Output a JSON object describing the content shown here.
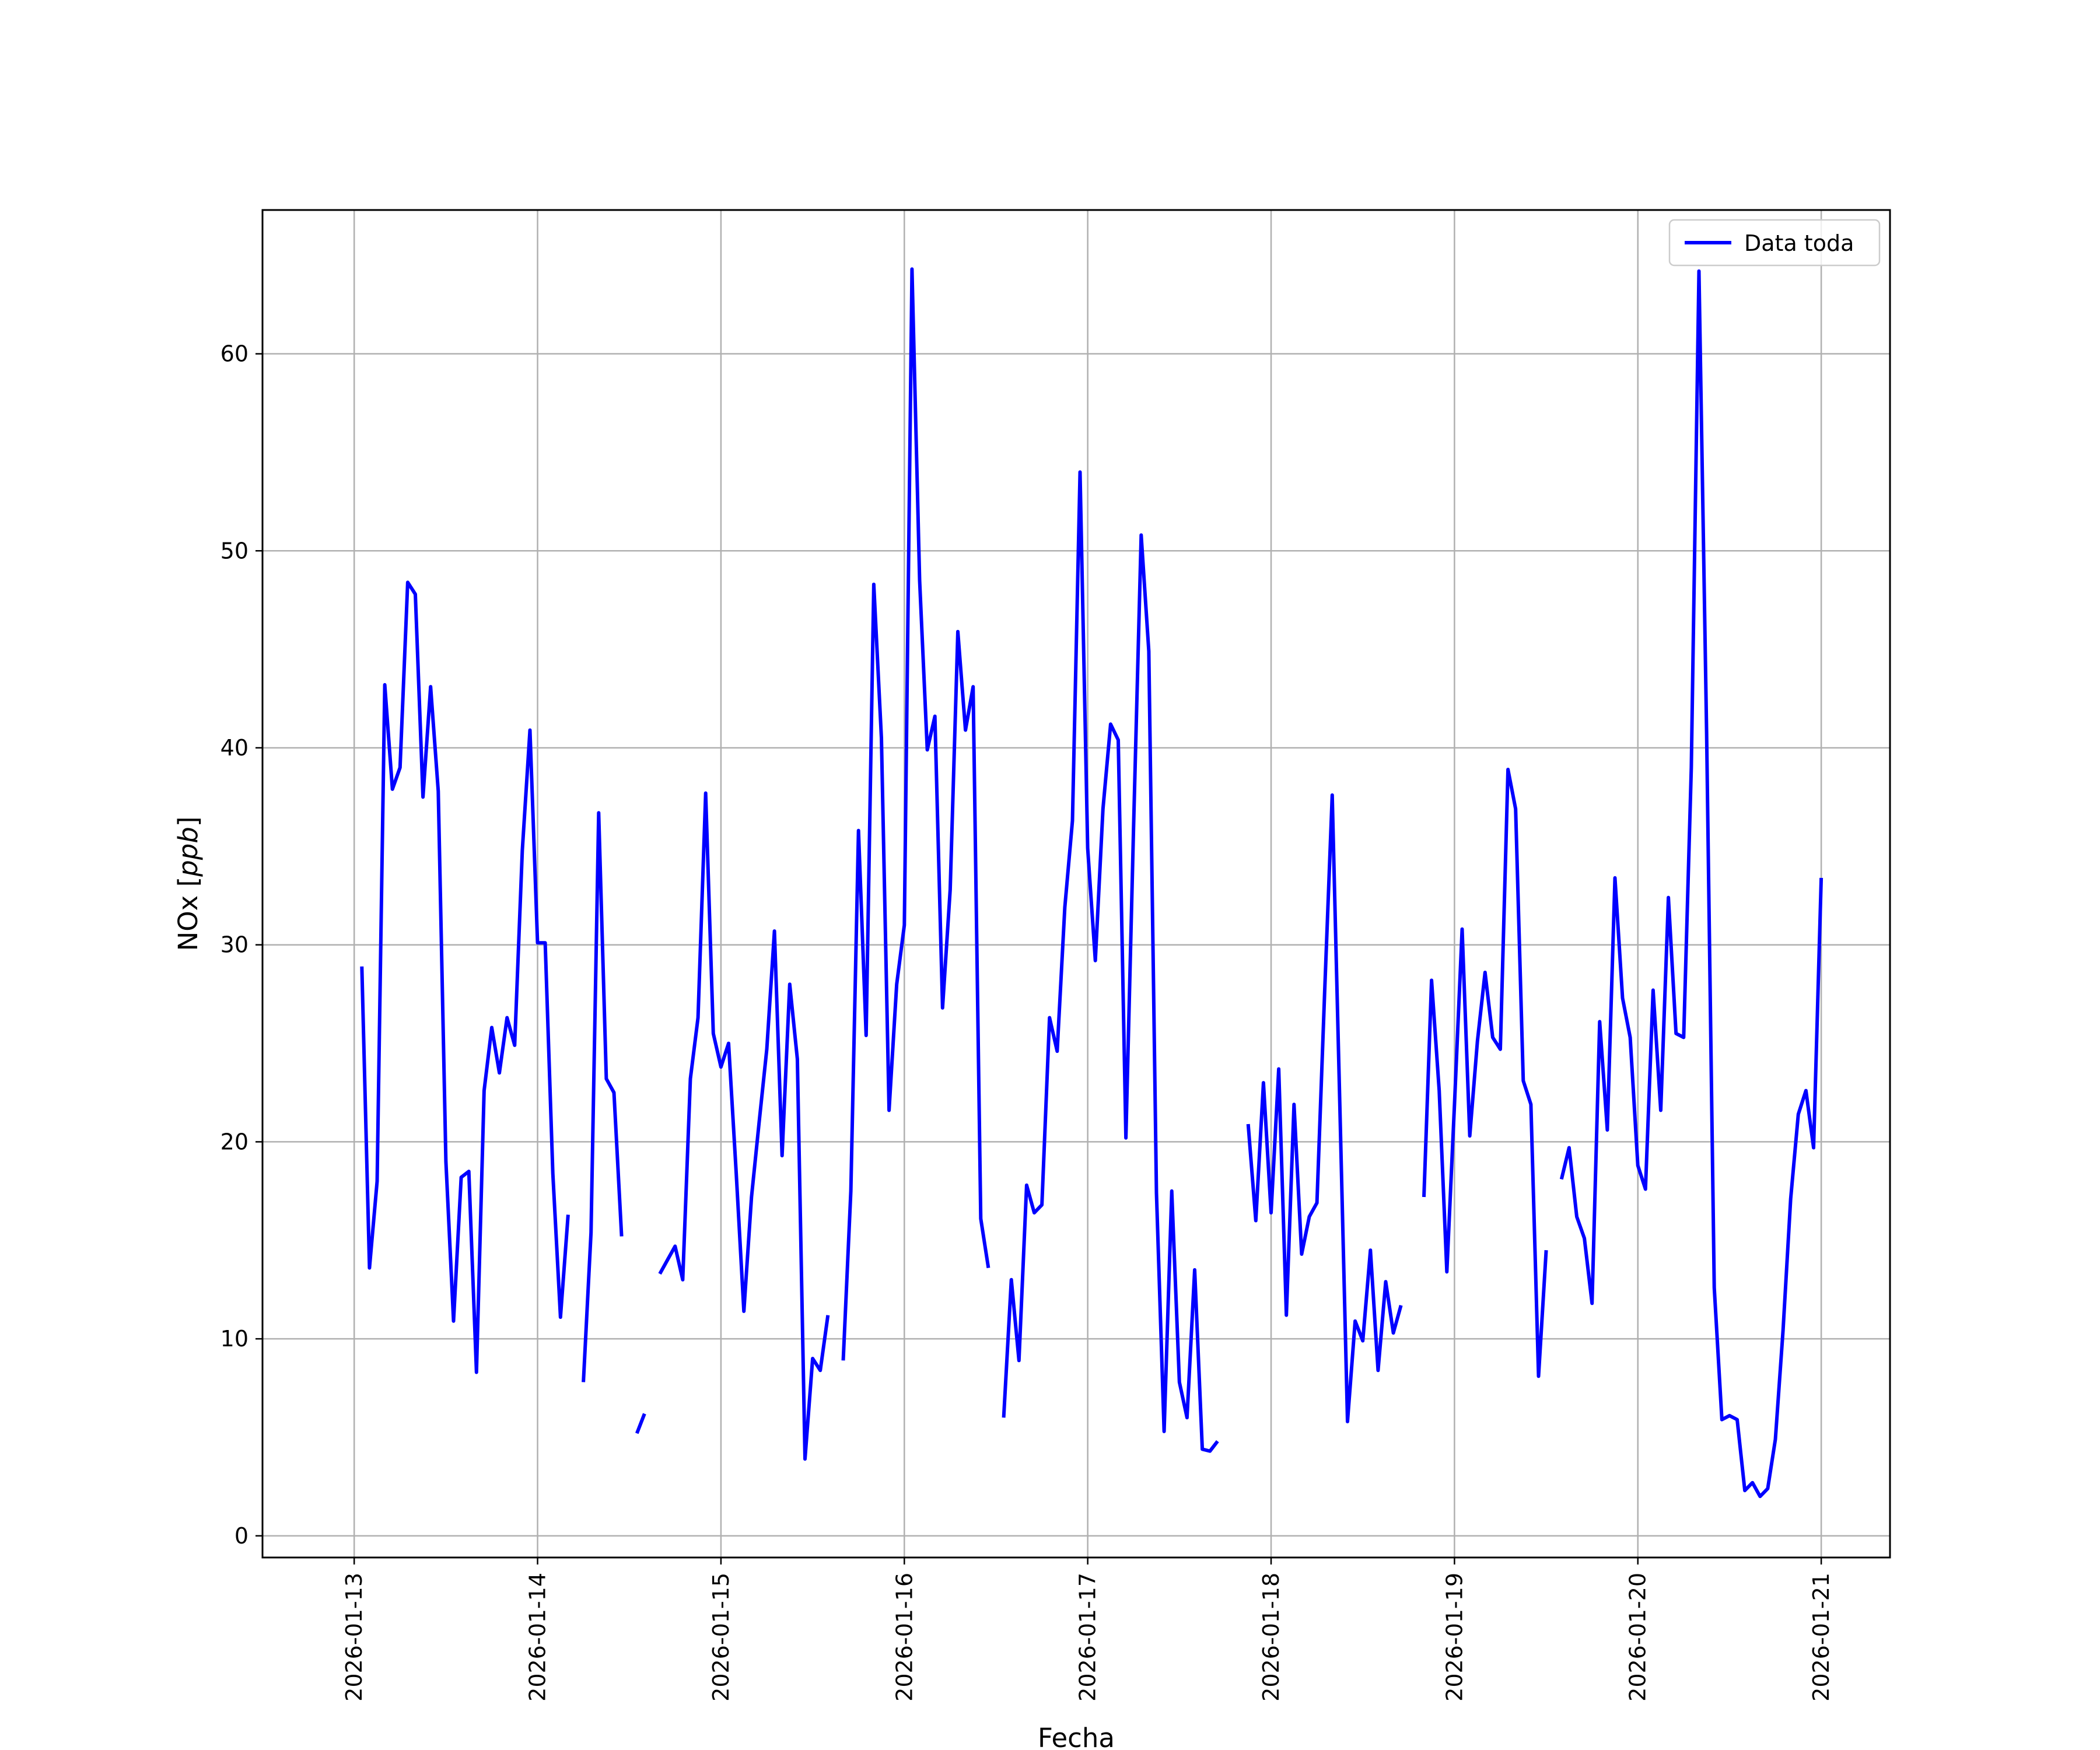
{
  "chart_data": {
    "type": "line",
    "title": "",
    "xlabel": "Fecha",
    "ylabel_prefix": "NOx [",
    "ylabel_unit": "ppb",
    "ylabel_suffix": "]",
    "xlim": [
      "2026-01-12 12:00",
      "2026-01-21 09:00"
    ],
    "ylim": [
      -1.1,
      67.3
    ],
    "grid": true,
    "legend_position": "top-right",
    "y_ticks": [
      0,
      10,
      20,
      30,
      40,
      50,
      60
    ],
    "x_ticks": [
      "2026-01-13",
      "2026-01-14",
      "2026-01-15",
      "2026-01-16",
      "2026-01-17",
      "2026-01-18",
      "2026-01-19",
      "2026-01-20",
      "2026-01-21"
    ],
    "colors": {
      "series": "#0000ff",
      "grid": "#b0b0b0",
      "axes": "#000000"
    },
    "series": [
      {
        "name": "Data toda",
        "segments": [
          [
            [
              "2026-01-13 01:00",
              28.9
            ],
            [
              "2026-01-13 02:00",
              13.6
            ],
            [
              "2026-01-13 03:00",
              18.0
            ],
            [
              "2026-01-13 04:00",
              43.2
            ],
            [
              "2026-01-13 05:00",
              37.9
            ],
            [
              "2026-01-13 06:00",
              39.0
            ],
            [
              "2026-01-13 07:00",
              48.4
            ],
            [
              "2026-01-13 08:00",
              47.8
            ],
            [
              "2026-01-13 09:00",
              37.5
            ],
            [
              "2026-01-13 10:00",
              43.1
            ],
            [
              "2026-01-13 11:00",
              37.8
            ],
            [
              "2026-01-13 12:00",
              19.0
            ],
            [
              "2026-01-13 13:00",
              10.9
            ],
            [
              "2026-01-13 14:00",
              18.2
            ],
            [
              "2026-01-13 15:00",
              18.5
            ],
            [
              "2026-01-13 16:00",
              8.3
            ],
            [
              "2026-01-13 17:00",
              22.6
            ],
            [
              "2026-01-13 18:00",
              25.8
            ],
            [
              "2026-01-13 19:00",
              23.5
            ],
            [
              "2026-01-13 20:00",
              26.3
            ],
            [
              "2026-01-13 21:00",
              24.9
            ],
            [
              "2026-01-13 22:00",
              34.8
            ],
            [
              "2026-01-13 23:00",
              40.9
            ],
            [
              "2026-01-14 00:00",
              30.1
            ],
            [
              "2026-01-14 01:00",
              30.1
            ],
            [
              "2026-01-14 02:00",
              18.4
            ],
            [
              "2026-01-14 03:00",
              11.1
            ],
            [
              "2026-01-14 04:00",
              16.3
            ]
          ],
          [
            [
              "2026-01-14 06:00",
              7.8
            ],
            [
              "2026-01-14 07:00",
              15.4
            ],
            [
              "2026-01-14 08:00",
              36.7
            ],
            [
              "2026-01-14 09:00",
              23.2
            ],
            [
              "2026-01-14 10:00",
              22.5
            ],
            [
              "2026-01-14 11:00",
              15.2
            ]
          ],
          [
            [
              "2026-01-14 13:00",
              5.2
            ],
            [
              "2026-01-14 14:00",
              6.2
            ]
          ],
          [
            [
              "2026-01-14 16:00",
              13.3
            ],
            [
              "2026-01-14 17:00",
              14.0
            ],
            [
              "2026-01-14 18:00",
              14.7
            ],
            [
              "2026-01-14 19:00",
              13.0
            ],
            [
              "2026-01-14 20:00",
              23.2
            ],
            [
              "2026-01-14 21:00",
              26.3
            ],
            [
              "2026-01-14 22:00",
              37.7
            ],
            [
              "2026-01-14 23:00",
              25.5
            ],
            [
              "2026-01-15 00:00",
              23.8
            ],
            [
              "2026-01-15 01:00",
              25.0
            ],
            [
              "2026-01-15 02:00",
              18.4
            ],
            [
              "2026-01-15 03:00",
              11.4
            ],
            [
              "2026-01-15 04:00",
              17.2
            ],
            [
              "2026-01-15 05:00",
              21.0
            ],
            [
              "2026-01-15 06:00",
              24.7
            ],
            [
              "2026-01-15 07:00",
              30.7
            ],
            [
              "2026-01-15 08:00",
              19.3
            ],
            [
              "2026-01-15 09:00",
              28.0
            ],
            [
              "2026-01-15 10:00",
              24.2
            ],
            [
              "2026-01-15 11:00",
              3.9
            ],
            [
              "2026-01-15 12:00",
              9.0
            ],
            [
              "2026-01-15 13:00",
              8.4
            ],
            [
              "2026-01-15 14:00",
              11.2
            ]
          ],
          [
            [
              "2026-01-15 16:00",
              8.9
            ],
            [
              "2026-01-15 17:00",
              17.5
            ],
            [
              "2026-01-15 18:00",
              35.8
            ],
            [
              "2026-01-15 19:00",
              25.4
            ],
            [
              "2026-01-15 20:00",
              48.3
            ],
            [
              "2026-01-15 21:00",
              40.5
            ],
            [
              "2026-01-15 22:00",
              21.6
            ],
            [
              "2026-01-15 23:00",
              28.0
            ],
            [
              "2026-01-16 00:00",
              31.0
            ],
            [
              "2026-01-16 01:00",
              64.3
            ],
            [
              "2026-01-16 02:00",
              48.5
            ],
            [
              "2026-01-16 03:00",
              39.9
            ],
            [
              "2026-01-16 04:00",
              41.6
            ],
            [
              "2026-01-16 05:00",
              26.8
            ],
            [
              "2026-01-16 06:00",
              32.8
            ],
            [
              "2026-01-16 07:00",
              45.9
            ],
            [
              "2026-01-16 08:00",
              40.9
            ],
            [
              "2026-01-16 09:00",
              43.1
            ],
            [
              "2026-01-16 10:00",
              16.1
            ],
            [
              "2026-01-16 11:00",
              13.6
            ]
          ],
          [
            [
              "2026-01-16 13:00",
              6.0
            ],
            [
              "2026-01-16 14:00",
              13.0
            ],
            [
              "2026-01-16 15:00",
              8.9
            ],
            [
              "2026-01-16 16:00",
              17.8
            ],
            [
              "2026-01-16 17:00",
              16.4
            ],
            [
              "2026-01-16 18:00",
              16.8
            ],
            [
              "2026-01-16 19:00",
              26.3
            ],
            [
              "2026-01-16 20:00",
              24.6
            ],
            [
              "2026-01-16 21:00",
              31.9
            ],
            [
              "2026-01-16 22:00",
              36.3
            ],
            [
              "2026-01-16 23:00",
              54.0
            ],
            [
              "2026-01-17 00:00",
              34.9
            ],
            [
              "2026-01-17 01:00",
              29.2
            ],
            [
              "2026-01-17 02:00",
              36.9
            ],
            [
              "2026-01-17 03:00",
              41.2
            ],
            [
              "2026-01-17 04:00",
              40.4
            ],
            [
              "2026-01-17 05:00",
              20.2
            ],
            [
              "2026-01-17 06:00",
              35.9
            ],
            [
              "2026-01-17 07:00",
              50.8
            ],
            [
              "2026-01-17 08:00",
              44.9
            ],
            [
              "2026-01-17 09:00",
              17.4
            ],
            [
              "2026-01-17 10:00",
              5.3
            ],
            [
              "2026-01-17 11:00",
              17.5
            ],
            [
              "2026-01-17 12:00",
              7.8
            ],
            [
              "2026-01-17 13:00",
              6.0
            ],
            [
              "2026-01-17 14:00",
              13.5
            ],
            [
              "2026-01-17 15:00",
              4.4
            ],
            [
              "2026-01-17 16:00",
              4.3
            ],
            [
              "2026-01-17 17:00",
              4.8
            ]
          ],
          [
            [
              "2026-01-17 21:00",
              20.9
            ],
            [
              "2026-01-17 22:00",
              16.0
            ],
            [
              "2026-01-17 23:00",
              23.0
            ],
            [
              "2026-01-18 00:00",
              16.4
            ],
            [
              "2026-01-18 01:00",
              23.7
            ],
            [
              "2026-01-18 02:00",
              11.2
            ],
            [
              "2026-01-18 03:00",
              21.9
            ],
            [
              "2026-01-18 04:00",
              14.3
            ],
            [
              "2026-01-18 05:00",
              16.2
            ],
            [
              "2026-01-18 06:00",
              16.9
            ],
            [
              "2026-01-18 07:00",
              27.5
            ],
            [
              "2026-01-18 08:00",
              37.6
            ],
            [
              "2026-01-18 09:00",
              21.8
            ],
            [
              "2026-01-18 10:00",
              5.8
            ],
            [
              "2026-01-18 11:00",
              10.9
            ],
            [
              "2026-01-18 12:00",
              9.9
            ],
            [
              "2026-01-18 13:00",
              14.5
            ],
            [
              "2026-01-18 14:00",
              8.4
            ],
            [
              "2026-01-18 15:00",
              12.9
            ],
            [
              "2026-01-18 16:00",
              10.3
            ],
            [
              "2026-01-18 17:00",
              11.7
            ]
          ],
          [
            [
              "2026-01-18 20:00",
              17.2
            ],
            [
              "2026-01-18 21:00",
              28.2
            ],
            [
              "2026-01-18 22:00",
              22.6
            ],
            [
              "2026-01-18 23:00",
              13.4
            ],
            [
              "2026-01-19 00:00",
              21.9
            ],
            [
              "2026-01-19 01:00",
              30.8
            ],
            [
              "2026-01-19 02:00",
              20.3
            ],
            [
              "2026-01-19 03:00",
              25.1
            ],
            [
              "2026-01-19 04:00",
              28.6
            ],
            [
              "2026-01-19 05:00",
              25.3
            ],
            [
              "2026-01-19 06:00",
              24.7
            ],
            [
              "2026-01-19 07:00",
              38.9
            ],
            [
              "2026-01-19 08:00",
              36.9
            ],
            [
              "2026-01-19 09:00",
              23.1
            ],
            [
              "2026-01-19 10:00",
              21.9
            ],
            [
              "2026-01-19 11:00",
              8.1
            ],
            [
              "2026-01-19 12:00",
              14.5
            ]
          ],
          [
            [
              "2026-01-19 14:00",
              18.1
            ],
            [
              "2026-01-19 15:00",
              19.7
            ],
            [
              "2026-01-19 16:00",
              16.2
            ],
            [
              "2026-01-19 17:00",
              15.1
            ],
            [
              "2026-01-19 18:00",
              11.8
            ],
            [
              "2026-01-19 19:00",
              26.1
            ],
            [
              "2026-01-19 20:00",
              20.6
            ],
            [
              "2026-01-19 21:00",
              33.4
            ],
            [
              "2026-01-19 22:00",
              27.3
            ],
            [
              "2026-01-19 23:00",
              25.3
            ],
            [
              "2026-01-20 00:00",
              18.8
            ],
            [
              "2026-01-20 01:00",
              17.6
            ],
            [
              "2026-01-20 02:00",
              27.7
            ],
            [
              "2026-01-20 03:00",
              21.6
            ],
            [
              "2026-01-20 04:00",
              32.4
            ],
            [
              "2026-01-20 05:00",
              25.5
            ],
            [
              "2026-01-20 06:00",
              25.3
            ],
            [
              "2026-01-20 07:00",
              39.0
            ],
            [
              "2026-01-20 08:00",
              64.2
            ],
            [
              "2026-01-20 09:00",
              40.8
            ],
            [
              "2026-01-20 10:00",
              12.6
            ],
            [
              "2026-01-20 11:00",
              5.9
            ],
            [
              "2026-01-20 12:00",
              6.1
            ],
            [
              "2026-01-20 13:00",
              5.9
            ],
            [
              "2026-01-20 14:00",
              2.3
            ],
            [
              "2026-01-20 15:00",
              2.7
            ],
            [
              "2026-01-20 16:00",
              2.0
            ],
            [
              "2026-01-20 17:00",
              2.4
            ],
            [
              "2026-01-20 18:00",
              4.9
            ],
            [
              "2026-01-20 19:00",
              10.4
            ],
            [
              "2026-01-20 20:00",
              17.1
            ],
            [
              "2026-01-20 21:00",
              21.4
            ],
            [
              "2026-01-20 22:00",
              22.6
            ],
            [
              "2026-01-20 23:00",
              19.7
            ],
            [
              "2026-01-21 00:00",
              33.4
            ]
          ]
        ]
      }
    ]
  }
}
